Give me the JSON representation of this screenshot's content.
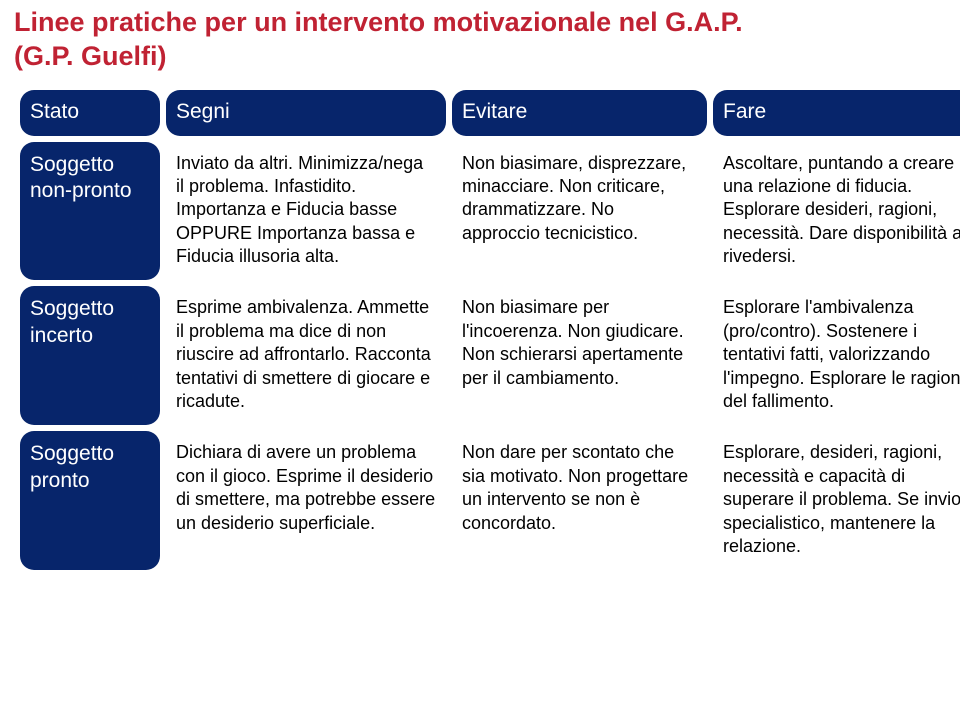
{
  "title_line1": "Linee pratiche per un intervento motivazionale nel G.A.P.",
  "title_line2": "(G.P. Guelfi)",
  "headers": {
    "stato": "Stato",
    "segni": "Segni",
    "evitare": "Evitare",
    "fare": "Fare"
  },
  "rows": [
    {
      "stato": "Soggetto non-pronto",
      "segni": "Inviato da altri. Minimizza/nega il problema. Infastidito. Importanza e Fiducia basse OPPURE Importanza bassa e Fiducia illusoria alta.",
      "evitare": "Non biasimare, disprezzare, minacciare. Non criticare, drammatizzare. No approccio tecnicistico.",
      "fare": "Ascoltare, puntando a creare una relazione di fiducia. Esplorare desideri, ragioni, necessità. Dare disponibilità a rivedersi."
    },
    {
      "stato": "Soggetto incerto",
      "segni": "Esprime ambivalenza. Ammette il problema ma dice di non riuscire ad affrontarlo. Racconta tentativi di smettere di giocare e ricadute.",
      "evitare": "Non biasimare per l'incoerenza. Non giudicare. Non schierarsi apertamente per il cambiamento.",
      "fare": "Esplorare l'ambivalenza (pro/contro). Sostenere i tentativi fatti, valorizzando l'impegno. Esplorare le ragioni del fallimento."
    },
    {
      "stato": "Soggetto pronto",
      "segni": "Dichiara di avere un problema con il gioco. Esprime il desiderio di smettere, ma potrebbe essere un desiderio superficiale.",
      "evitare": "Non dare per scontato che sia motivato. Non progettare un intervento se non è concordato.",
      "fare": "Esplorare, desideri, ragioni, necessità e capacità di superare il problema. Se invio specialistico, mantenere la relazione."
    }
  ],
  "colors": {
    "title": "#c02233",
    "header_bg": "#07256b",
    "header_fg": "#ffffff",
    "cell_bg": "#ffffff",
    "cell_fg": "#000000"
  }
}
